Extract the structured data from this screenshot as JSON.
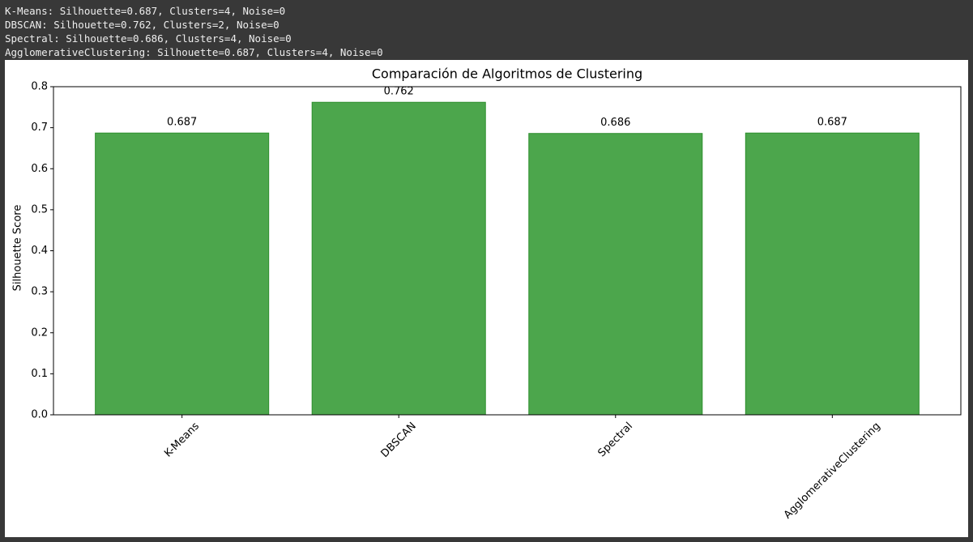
{
  "console": {
    "lines": [
      "K-Means: Silhouette=0.687, Clusters=4, Noise=0",
      "DBSCAN: Silhouette=0.762, Clusters=2, Noise=0",
      "Spectral: Silhouette=0.686, Clusters=4, Noise=0",
      "AgglomerativeClustering: Silhouette=0.687, Clusters=4, Noise=0"
    ]
  },
  "chart_data": {
    "type": "bar",
    "title": "Comparación de Algoritmos de Clustering",
    "y_label": "Silhouette Score",
    "categories": [
      "K-Means",
      "DBSCAN",
      "Spectral",
      "AgglomerativeClustering"
    ],
    "values": [
      0.687,
      0.762,
      0.686,
      0.687
    ],
    "value_labels": [
      "0.687",
      "0.762",
      "0.686",
      "0.687"
    ],
    "color": "#4ca64c",
    "edge_color": "#2e8f2e",
    "ylim": [
      0,
      0.8
    ],
    "yticks": [
      {
        "value": 0,
        "label": "0.0"
      },
      0.1,
      0.2,
      0.3,
      0.4,
      0.5,
      0.6,
      0.7,
      0.8
    ],
    "grid": false
  }
}
